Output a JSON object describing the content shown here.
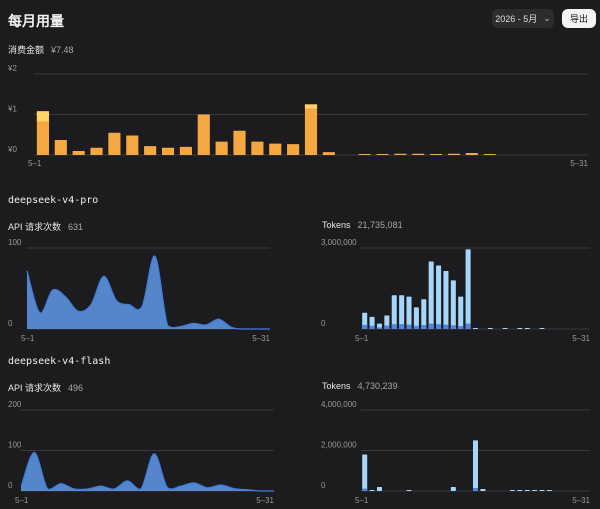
{
  "header": {
    "title": "每月用量",
    "month": "2026 - 5月",
    "export_label": "导出"
  },
  "colors": {
    "cost": "#f5a742",
    "cost_top": "#ffd36a",
    "requests": "#5b8fd9",
    "requests_line": "#3f7be0",
    "tokens": "#a5d6fb",
    "tokens_base": "#4f86e2",
    "grid": "#3a3a3c"
  },
  "cost": {
    "label": "消费金额",
    "value": "¥7.48"
  },
  "models": [
    {
      "name": "deepseek-v4-pro",
      "requests_label": "API 请求次数",
      "requests_value": "631",
      "tokens_label": "Tokens",
      "tokens_value": "21,735,081"
    },
    {
      "name": "deepseek-v4-flash",
      "requests_label": "API 请求次数",
      "requests_value": "496",
      "tokens_label": "Tokens",
      "tokens_value": "4,730,239"
    }
  ],
  "chart_data": [
    {
      "id": "cost",
      "type": "bar",
      "x_start": "5–1",
      "x_end": "5–31",
      "y_ticks": [
        "¥2",
        "¥1",
        "¥0"
      ],
      "ylim": [
        0,
        2
      ],
      "values": [
        1.08,
        0.37,
        0.1,
        0.18,
        0.55,
        0.48,
        0.22,
        0.18,
        0.2,
        1.0,
        0.33,
        0.6,
        0.33,
        0.28,
        0.27,
        1.25,
        0.07,
        0,
        0.02,
        0.02,
        0.03,
        0.03,
        0.02,
        0.03,
        0.05,
        0.01,
        0,
        0,
        0,
        0,
        0
      ],
      "top_values": [
        0.25,
        0,
        0,
        0,
        0,
        0,
        0,
        0,
        0,
        0,
        0,
        0,
        0,
        0,
        0,
        0.1,
        0,
        0,
        0,
        0,
        0,
        0,
        0,
        0,
        0,
        0,
        0,
        0,
        0,
        0,
        0
      ]
    },
    {
      "id": "pro-requests",
      "type": "area",
      "x_start": "5–1",
      "x_end": "5–31",
      "y_ticks": [
        "100",
        "0"
      ],
      "ylim": [
        0,
        100
      ],
      "values": [
        72,
        20,
        48,
        40,
        22,
        30,
        65,
        35,
        30,
        28,
        90,
        4,
        3,
        7,
        5,
        12,
        2,
        0,
        0,
        0
      ]
    },
    {
      "id": "pro-tokens",
      "type": "bar",
      "x_start": "5–1",
      "x_end": "5–31",
      "y_ticks": [
        "3,000,000",
        "0"
      ],
      "ylim": [
        0,
        3000000
      ],
      "values": [
        600000,
        450000,
        200000,
        500000,
        1250000,
        1250000,
        1200000,
        800000,
        1100000,
        2500000,
        2350000,
        2150000,
        1800000,
        1200000,
        2950000,
        20000,
        0,
        20000,
        0,
        10000,
        0,
        10000,
        10000,
        0,
        10000,
        0,
        0,
        0,
        0,
        0,
        0
      ],
      "base_values": [
        150000,
        120000,
        60000,
        130000,
        180000,
        180000,
        160000,
        120000,
        150000,
        200000,
        180000,
        160000,
        140000,
        110000,
        200000,
        0,
        0,
        0,
        0,
        0,
        0,
        0,
        0,
        0,
        0,
        0,
        0,
        0,
        0,
        0,
        0
      ]
    },
    {
      "id": "flash-requests",
      "type": "area",
      "x_start": "5–1",
      "x_end": "5–31",
      "y_ticks": [
        "200",
        "100",
        "0"
      ],
      "ylim": [
        0,
        200
      ],
      "values": [
        10,
        95,
        5,
        18,
        5,
        5,
        12,
        5,
        25,
        5,
        92,
        8,
        12,
        20,
        8,
        15,
        6,
        3,
        0,
        0
      ]
    },
    {
      "id": "flash-tokens",
      "type": "bar",
      "x_start": "5–1",
      "x_end": "5–31",
      "y_ticks": [
        "4,000,000",
        "2,000,000",
        "0"
      ],
      "ylim": [
        0,
        4000000
      ],
      "values": [
        1800000,
        50000,
        200000,
        0,
        0,
        0,
        30000,
        0,
        0,
        0,
        0,
        0,
        200000,
        0,
        0,
        2500000,
        100000,
        0,
        0,
        0,
        20000,
        20000,
        20000,
        20000,
        30000,
        20000,
        0,
        0,
        0,
        0,
        0
      ],
      "base_values": [
        120000,
        0,
        0,
        0,
        0,
        0,
        0,
        0,
        0,
        0,
        0,
        0,
        0,
        0,
        0,
        150000,
        0,
        0,
        0,
        0,
        0,
        0,
        0,
        0,
        0,
        0,
        0,
        0,
        0,
        0,
        0
      ]
    }
  ]
}
